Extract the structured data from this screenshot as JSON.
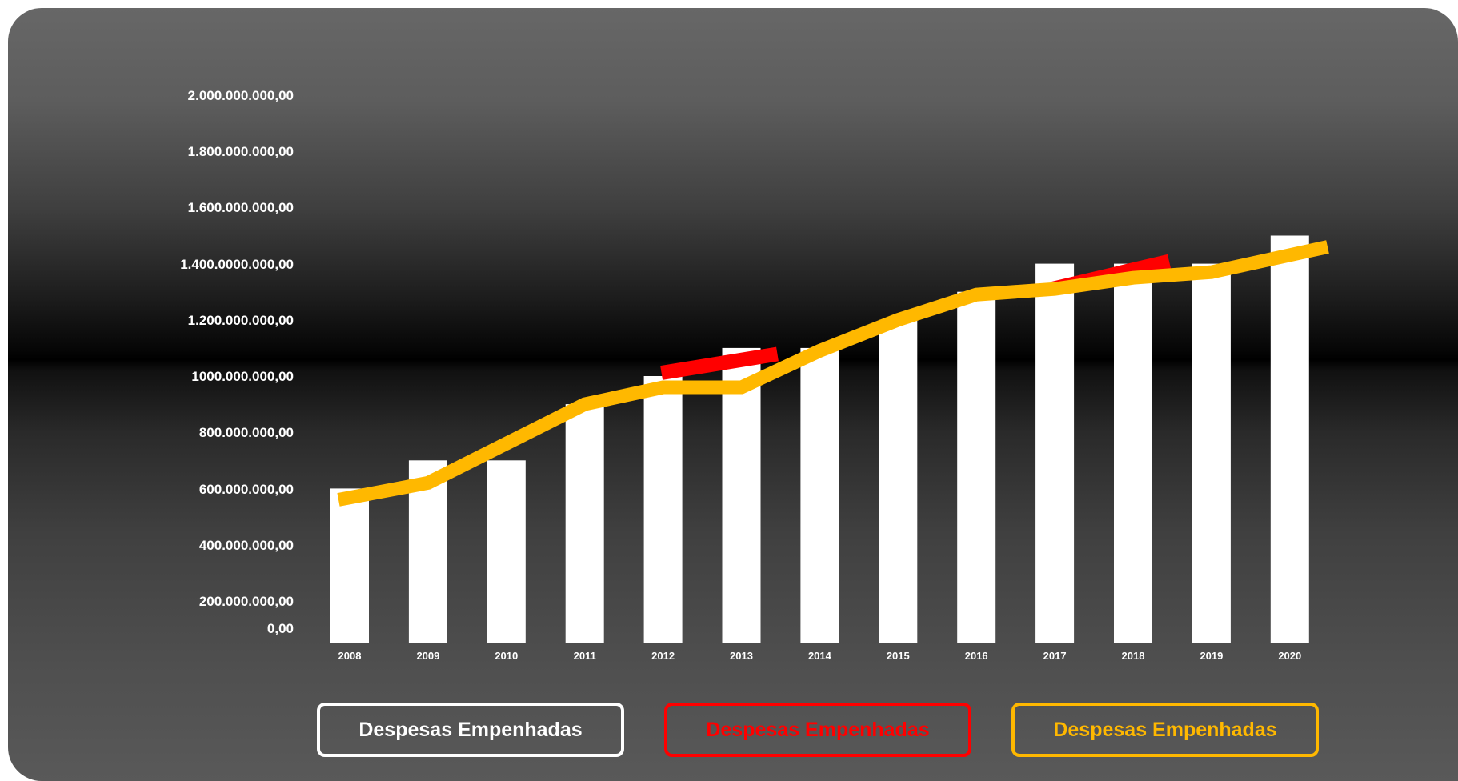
{
  "chart_data": {
    "type": "bar",
    "categories": [
      "2008",
      "2009",
      "2010",
      "2011",
      "2012",
      "2013",
      "2014",
      "2015",
      "2016",
      "2017",
      "2018",
      "2019",
      "2020"
    ],
    "y_tick_labels": [
      "0,00",
      "200.000.000,00",
      "400.000.000,00",
      "600.000.000,00",
      "800.000.000,00",
      "1000.000.000,00",
      "1.200.000.000,00",
      "1.400.0000.000,00",
      "1.600.000.000,00",
      "1.800.000.000,00",
      "2.000.000.000,00"
    ],
    "ylim": [
      0,
      2000000000
    ],
    "grid": false,
    "legend_placement": "bottom",
    "series": [
      {
        "name": "Despesas Empenhadas",
        "type": "bar",
        "color": "#ffffff",
        "values": [
          600000000,
          700000000,
          700000000,
          900000000,
          1000000000,
          1100000000,
          1100000000,
          1200000000,
          1300000000,
          1400000000,
          1400000000,
          1400000000,
          1500000000
        ]
      },
      {
        "name": "Despesas Empenhadas",
        "type": "line",
        "color": "#ff0000",
        "values": [
          null,
          null,
          null,
          null,
          1000000000,
          1050000000,
          null,
          null,
          null,
          1300000000,
          1380000000,
          null,
          null
        ]
      },
      {
        "name": "Despesas Empenhadas",
        "type": "line",
        "color": "#ffb800",
        "values": [
          560000000,
          620000000,
          760000000,
          900000000,
          960000000,
          960000000,
          1090000000,
          1200000000,
          1290000000,
          1310000000,
          1350000000,
          1370000000,
          1460000000
        ]
      }
    ]
  },
  "legend": {
    "white_label": "Despesas Empenhadas",
    "red_label": "Despesas Empenhadas",
    "yellow_label": "Despesas Empenhadas"
  },
  "colors": {
    "bar": "#ffffff",
    "red_line": "#ff0000",
    "yellow_line": "#ffb800"
  }
}
